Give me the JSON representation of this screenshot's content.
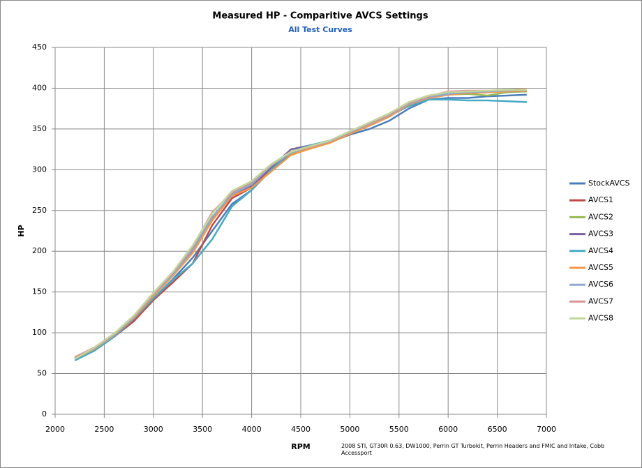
{
  "chart_data": {
    "type": "line",
    "title": "Measured HP - Comparitive AVCS Settings",
    "subtitle": "All Test Curves",
    "x_label": "RPM",
    "y_label": "HP",
    "annotation": "2008 STI, GT30R 0.63, DW1000, Perrin GT Turbokit, Perrin Headers and FMIC and Intake, Cobb Accessport",
    "x": [
      2200,
      2400,
      2600,
      2800,
      3000,
      3200,
      3400,
      3600,
      3800,
      4000,
      4200,
      4400,
      4600,
      4800,
      5000,
      5200,
      5400,
      5600,
      5800,
      6000,
      6200,
      6400,
      6600,
      6800
    ],
    "series": [
      {
        "name": "StockAVCS",
        "color": "#4a7ebb",
        "values": [
          68,
          80,
          96,
          116,
          142,
          166,
          192,
          225,
          258,
          275,
          300,
          320,
          328,
          334,
          343,
          350,
          360,
          375,
          386,
          388,
          388,
          390,
          391,
          392
        ]
      },
      {
        "name": "AVCS1",
        "color": "#be4b48",
        "values": [
          70,
          82,
          95,
          114,
          140,
          162,
          185,
          232,
          265,
          278,
          302,
          322,
          327,
          336,
          346,
          356,
          366,
          380,
          388,
          392,
          394,
          395,
          397,
          398
        ]
      },
      {
        "name": "AVCS2",
        "color": "#98b954",
        "values": [
          68,
          81,
          98,
          120,
          147,
          172,
          203,
          242,
          270,
          283,
          305,
          320,
          327,
          335,
          345,
          355,
          367,
          381,
          388,
          392,
          393,
          391,
          395,
          396
        ]
      },
      {
        "name": "AVCS3",
        "color": "#7d60a0",
        "values": [
          69,
          80,
          97,
          119,
          146,
          171,
          200,
          240,
          268,
          280,
          303,
          325,
          330,
          335,
          345,
          356,
          366,
          380,
          388,
          393,
          394,
          396,
          396,
          397
        ]
      },
      {
        "name": "AVCS4",
        "color": "#46aac5",
        "values": [
          66,
          78,
          95,
          117,
          142,
          165,
          185,
          215,
          255,
          275,
          300,
          322,
          330,
          336,
          345,
          355,
          366,
          378,
          386,
          386,
          385,
          385,
          384,
          383
        ]
      },
      {
        "name": "AVCS5",
        "color": "#f79646",
        "values": [
          68,
          80,
          97,
          118,
          145,
          170,
          198,
          238,
          268,
          278,
          298,
          318,
          326,
          333,
          344,
          354,
          365,
          380,
          388,
          392,
          394,
          395,
          396,
          397
        ]
      },
      {
        "name": "AVCS6",
        "color": "#8fa8d0",
        "values": [
          68,
          81,
          98,
          119,
          147,
          172,
          202,
          242,
          270,
          282,
          305,
          321,
          328,
          335,
          346,
          356,
          367,
          381,
          389,
          393,
          395,
          396,
          397,
          398
        ]
      },
      {
        "name": "AVCS7",
        "color": "#d99694",
        "values": [
          70,
          82,
          99,
          120,
          148,
          174,
          206,
          248,
          272,
          285,
          306,
          322,
          328,
          336,
          347,
          357,
          368,
          382,
          390,
          396,
          397,
          397,
          398,
          399
        ]
      },
      {
        "name": "AVCS8",
        "color": "#c3d69b",
        "values": [
          68,
          82,
          99,
          121,
          149,
          175,
          207,
          246,
          274,
          286,
          307,
          322,
          329,
          336,
          347,
          358,
          369,
          383,
          391,
          395,
          396,
          397,
          398,
          398
        ]
      }
    ],
    "xlim": [
      2000,
      7000
    ],
    "xticks": [
      2000,
      2500,
      3000,
      3500,
      4000,
      4500,
      5000,
      5500,
      6000,
      6500,
      7000
    ],
    "ylim": [
      0,
      450
    ],
    "yticks": [
      0,
      50,
      100,
      150,
      200,
      250,
      300,
      350,
      400,
      450
    ],
    "grid": true,
    "legend": "right"
  }
}
